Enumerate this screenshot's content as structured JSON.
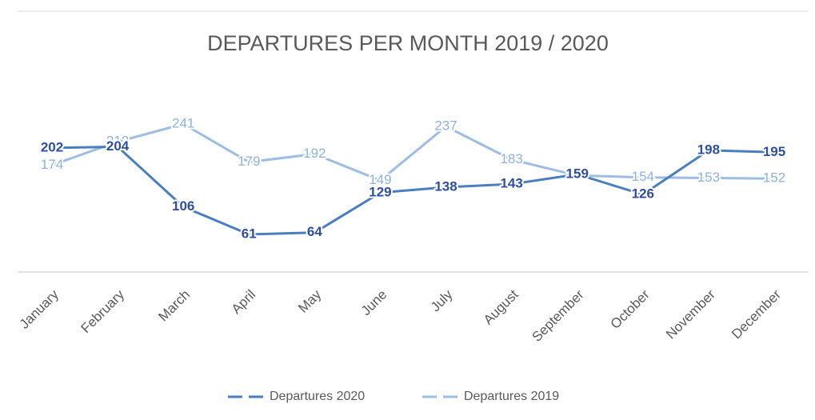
{
  "chart_data": {
    "type": "line",
    "title": "DEPARTURES PER MONTH 2019 / 2020",
    "categories": [
      "January",
      "February",
      "March",
      "April",
      "May",
      "June",
      "July",
      "August",
      "September",
      "October",
      "November",
      "December"
    ],
    "series": [
      {
        "name": "Departures 2020",
        "color": "#4a7ebf",
        "label_color": "#2f4f9e",
        "values": [
          202,
          204,
          106,
          61,
          64,
          129,
          138,
          143,
          159,
          126,
          198,
          195
        ]
      },
      {
        "name": "Departures 2019",
        "color": "#9dbde3",
        "label_color": "#8fb2dc",
        "values": [
          174,
          212,
          241,
          179,
          192,
          149,
          237,
          183,
          157,
          154,
          153,
          152
        ]
      }
    ]
  }
}
